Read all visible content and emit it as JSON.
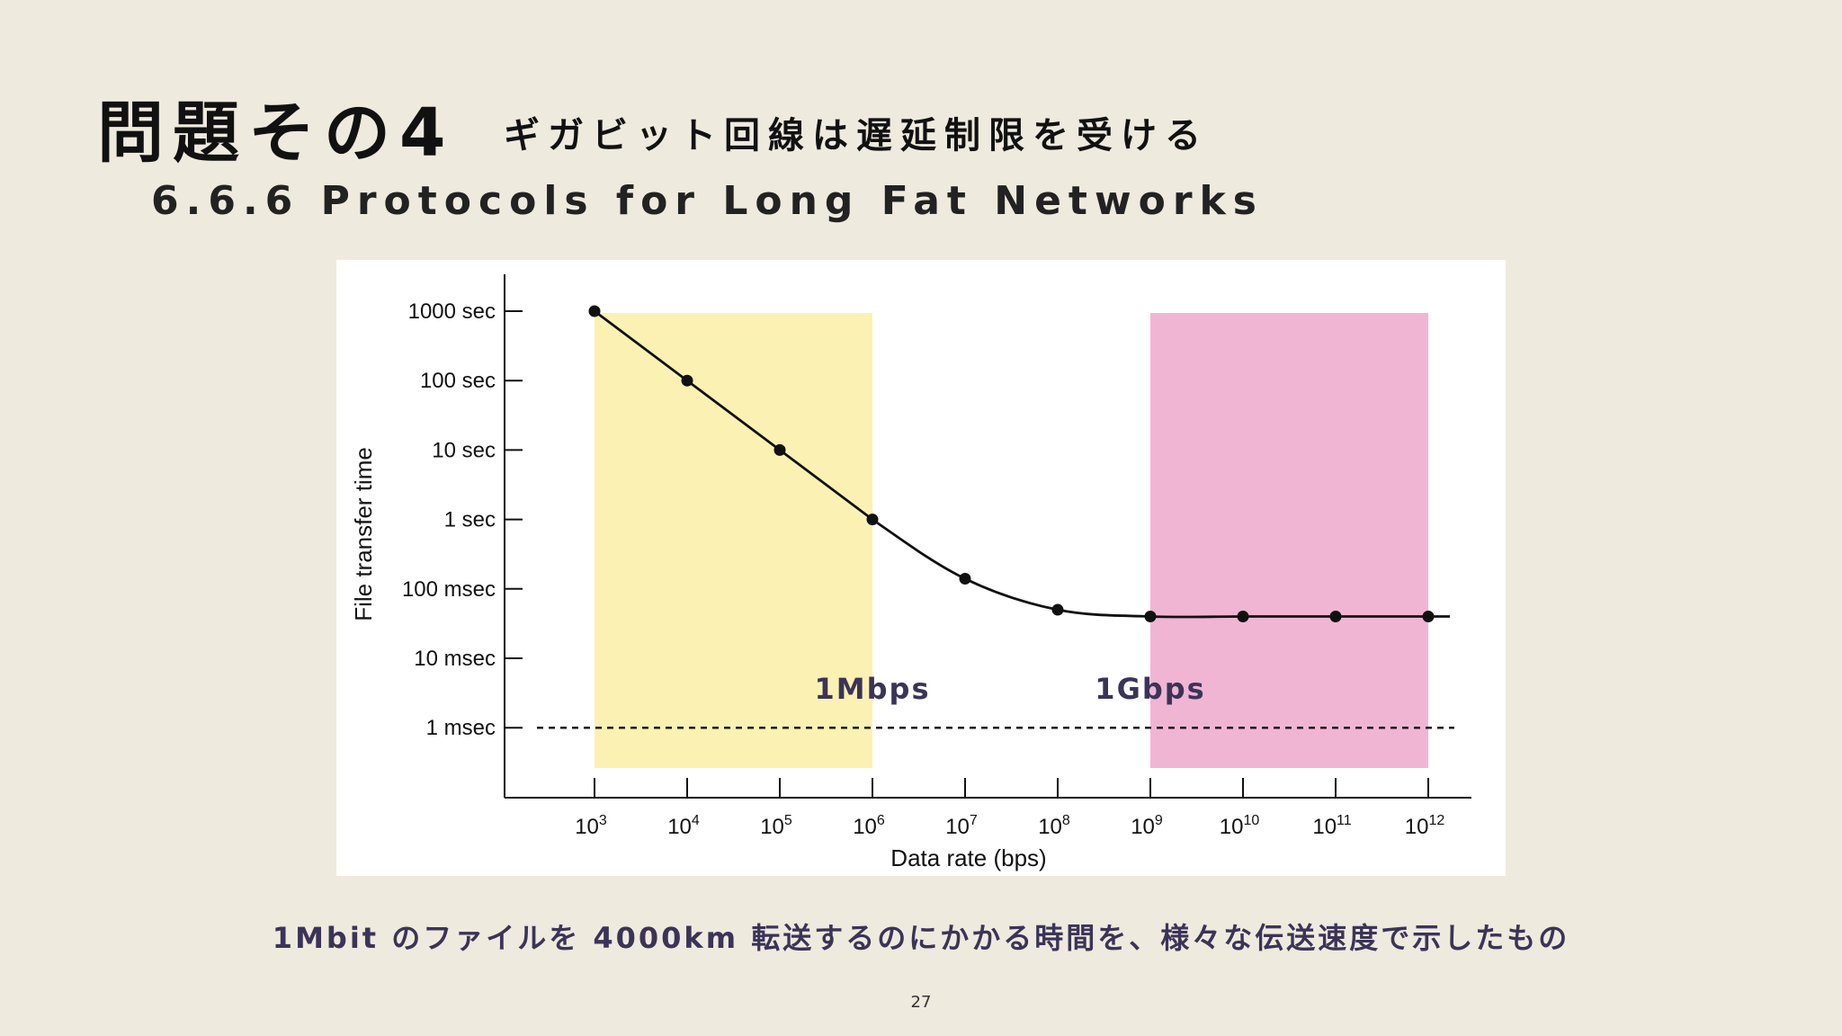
{
  "slide": {
    "title_main": "問題その4",
    "title_sub": "ギガビット回線は遅延制限を受ける",
    "section": "6.6.6 Protocols for Long Fat Networks",
    "caption": "1Mbit のファイルを 4000km 転送するのにかかる時間を、様々な伝送速度で示したもの",
    "page_number": "27"
  },
  "chart_data": {
    "type": "line",
    "xlabel": "Data rate (bps)",
    "ylabel": "File transfer time",
    "x_scale": "log",
    "y_scale": "log",
    "x_ticks": [
      {
        "base": "10",
        "exp": "3"
      },
      {
        "base": "10",
        "exp": "4"
      },
      {
        "base": "10",
        "exp": "5"
      },
      {
        "base": "10",
        "exp": "6"
      },
      {
        "base": "10",
        "exp": "7"
      },
      {
        "base": "10",
        "exp": "8"
      },
      {
        "base": "10",
        "exp": "9"
      },
      {
        "base": "10",
        "exp": "10"
      },
      {
        "base": "10",
        "exp": "11"
      },
      {
        "base": "10",
        "exp": "12"
      }
    ],
    "y_ticks": [
      "1000 sec",
      "100 sec",
      "10 sec",
      "1 sec",
      "100 msec",
      "10 msec",
      "1 msec"
    ],
    "y_tick_values_sec": [
      1000,
      100,
      10,
      1,
      0.1,
      0.01,
      0.001
    ],
    "xlim": [
      1000,
      2000000000000
    ],
    "ylim": [
      0.00015,
      2500
    ],
    "series": [
      {
        "x": [
          1000,
          10000,
          100000,
          1000000,
          10000000,
          100000000,
          1000000000,
          10000000000,
          100000000000,
          1000000000000
        ],
        "values": [
          1000,
          100,
          10,
          1,
          0.14,
          0.05,
          0.04,
          0.04,
          0.04,
          0.04
        ],
        "color": "#111111"
      }
    ],
    "reference_line": {
      "y": 0.001,
      "style": "dashed",
      "color": "#111111"
    },
    "highlight_regions": [
      {
        "x_from": 1000,
        "x_to": 1000000,
        "color": "#fbf1b3",
        "label": "1Mbps"
      },
      {
        "x_from": 1000000000,
        "x_to": 1000000000000,
        "color": "#f1b5d4",
        "label": "1Gbps"
      }
    ],
    "label_color": "#3b3458",
    "grid": false
  }
}
